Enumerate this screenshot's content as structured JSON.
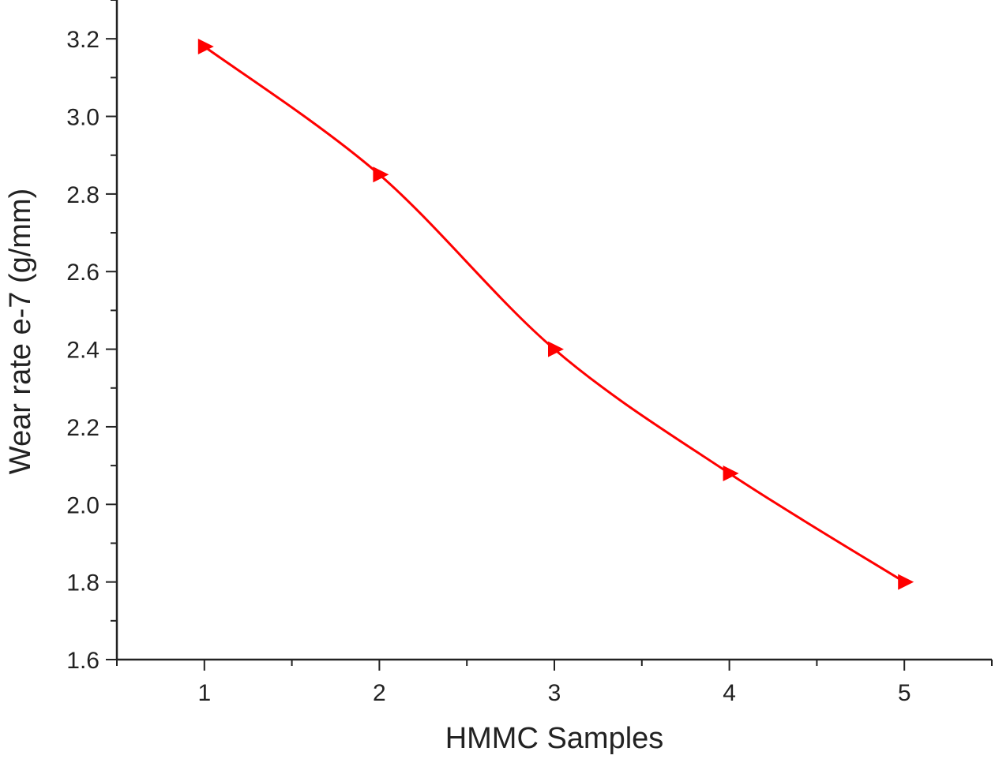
{
  "chart_data": {
    "type": "line",
    "title": "",
    "xlabel": "HMMC Samples",
    "ylabel": "Wear rate e-7 (g/mm)",
    "x": [
      1,
      2,
      3,
      4,
      5
    ],
    "series": [
      {
        "values": [
          3.18,
          2.85,
          2.4,
          2.08,
          1.8
        ],
        "color": "#ff0000",
        "marker": "right-pointing-triangle",
        "smooth": true
      }
    ],
    "xlim": [
      0.5,
      5.5
    ],
    "ylim": [
      1.6,
      3.3
    ],
    "x_ticks": [
      "1",
      "2",
      "3",
      "4",
      "5"
    ],
    "y_ticks": [
      "1.6",
      "1.8",
      "2.0",
      "2.2",
      "2.4",
      "2.6",
      "2.8",
      "3.0",
      "3.2"
    ],
    "grid": false,
    "legend": "none"
  }
}
